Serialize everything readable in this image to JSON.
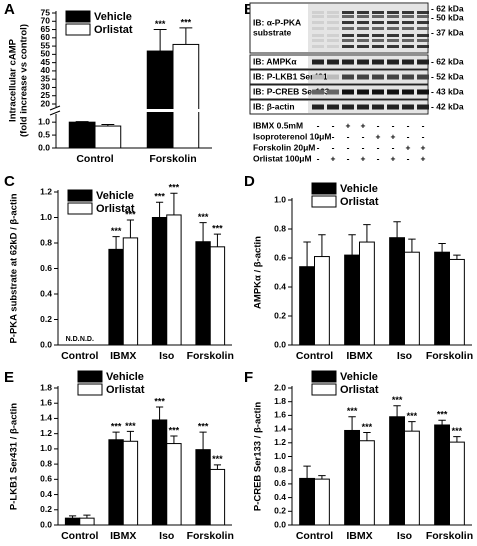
{
  "chart_data": [
    {
      "type": "bar",
      "label": "A",
      "ylabel": [
        "Intracellular cAMP",
        "(fold increase vs control)"
      ],
      "categories": [
        "Control",
        "Forskolin"
      ],
      "series": [
        {
          "name": "Vehicle",
          "color": "#000000",
          "values": [
            1.0,
            52
          ],
          "errors": [
            0.02,
            13
          ],
          "annotations": [
            null,
            "***"
          ]
        },
        {
          "name": "Orlistat",
          "color": "#ffffff",
          "values": [
            0.85,
            56
          ],
          "errors": [
            0.06,
            10
          ],
          "annotations": [
            null,
            "***"
          ]
        }
      ],
      "ylim": [
        0,
        75
      ],
      "ybreak": [
        1.2,
        20
      ],
      "yticks": [
        {
          "value": 0,
          "label": "0.0"
        },
        0.5,
        {
          "value": 1,
          "label": "1.0"
        },
        20,
        25,
        30,
        35,
        40,
        45,
        50,
        55,
        60,
        65,
        70,
        75
      ],
      "legend": "top-left"
    },
    {
      "type": "bar",
      "label": "C",
      "ylabel": [
        "P-PKA substrate at 62kD / β-actin"
      ],
      "categories": [
        "Control",
        "IBMX",
        "Iso",
        "Forskolin"
      ],
      "series": [
        {
          "name": "Vehicle",
          "color": "#000000",
          "values": [
            null,
            0.75,
            1.0,
            0.81
          ],
          "errors": [
            null,
            0.1,
            0.12,
            0.15
          ],
          "annotations": [
            "N.D.",
            "***",
            "***",
            "***"
          ]
        },
        {
          "name": "Orlistat",
          "color": "#ffffff",
          "values": [
            null,
            0.84,
            1.02,
            0.77
          ],
          "errors": [
            null,
            0.14,
            0.17,
            0.1
          ],
          "annotations": [
            "N.D.",
            "***",
            "***",
            "***"
          ]
        }
      ],
      "ylim": [
        0,
        1.2
      ],
      "yticks": [
        {
          "value": 0,
          "label": "0.0"
        },
        0.2,
        0.4,
        0.6,
        0.8,
        {
          "value": 1,
          "label": "1.0"
        },
        1.2
      ],
      "legend": "top-left"
    },
    {
      "type": "bar",
      "label": "D",
      "ylabel": [
        "AMPKα / β-actin"
      ],
      "categories": [
        "Control",
        "IBMX",
        "Iso",
        "Forskolin"
      ],
      "series": [
        {
          "name": "Vehicle",
          "color": "#000000",
          "values": [
            0.54,
            0.62,
            0.74,
            0.64
          ],
          "errors": [
            0.17,
            0.14,
            0.11,
            0.06
          ]
        },
        {
          "name": "Orlistat",
          "color": "#ffffff",
          "values": [
            0.61,
            0.71,
            0.64,
            0.59
          ],
          "errors": [
            0.15,
            0.12,
            0.09,
            0.03
          ]
        }
      ],
      "ylim": [
        0,
        1.0
      ],
      "yticks": [
        {
          "value": 0,
          "label": "0.0"
        },
        0.2,
        0.4,
        0.6,
        0.8,
        {
          "value": 1,
          "label": "1.0"
        }
      ],
      "legend": "top"
    },
    {
      "type": "bar",
      "label": "E",
      "ylabel": [
        "P-LKB1 Ser431 / β-actin"
      ],
      "categories": [
        "Control",
        "IBMX",
        "Iso",
        "Forskolin"
      ],
      "series": [
        {
          "name": "Vehicle",
          "color": "#000000",
          "values": [
            0.09,
            1.12,
            1.38,
            0.99
          ],
          "errors": [
            0.03,
            0.1,
            0.17,
            0.23
          ],
          "annotations": [
            null,
            "***",
            "***",
            "***"
          ]
        },
        {
          "name": "Orlistat",
          "color": "#ffffff",
          "values": [
            0.09,
            1.1,
            1.07,
            0.73
          ],
          "errors": [
            0.04,
            0.13,
            0.1,
            0.06
          ],
          "annotations": [
            null,
            "***",
            "***",
            "***"
          ]
        }
      ],
      "ylim": [
        0,
        1.8
      ],
      "yticks": [
        {
          "value": 0,
          "label": "0.0"
        },
        0.2,
        0.4,
        0.6,
        0.8,
        {
          "value": 1,
          "label": "1.0"
        },
        1.2,
        1.4,
        1.6,
        1.8
      ],
      "legend": "top"
    },
    {
      "type": "bar",
      "label": "F",
      "ylabel": [
        "P-CREB Ser133 / β-actin"
      ],
      "categories": [
        "Control",
        "IBMX",
        "Iso",
        "Forskolin"
      ],
      "series": [
        {
          "name": "Vehicle",
          "color": "#000000",
          "values": [
            0.68,
            1.38,
            1.58,
            1.46
          ],
          "errors": [
            0.18,
            0.2,
            0.16,
            0.07
          ],
          "annotations": [
            null,
            "***",
            "***",
            "***"
          ]
        },
        {
          "name": "Orlistat",
          "color": "#ffffff",
          "values": [
            0.67,
            1.23,
            1.37,
            1.21
          ],
          "errors": [
            0.05,
            0.12,
            0.14,
            0.08
          ],
          "annotations": [
            null,
            "***",
            "***",
            "***"
          ]
        }
      ],
      "ylim": [
        0,
        2.0
      ],
      "yticks": [
        {
          "value": 0,
          "label": "0.0"
        },
        0.2,
        0.4,
        0.6,
        0.8,
        {
          "value": 1,
          "label": "1.0"
        },
        1.2,
        1.4,
        1.6,
        1.8,
        {
          "value": 2,
          "label": "2.0"
        }
      ],
      "legend": "top"
    }
  ],
  "blot": {
    "label": "B",
    "probes": [
      [
        "IB: α-P-PKA",
        "substrate"
      ],
      [
        "IB: AMPKα"
      ],
      [
        "IB: P-LKB1 Ser431"
      ],
      [
        "IB: P-CREB Ser133"
      ],
      [
        "IB: β-actin"
      ]
    ],
    "markers": [
      "- 62 kDa",
      "- 50 kDa",
      "- 37 kDa",
      "- 62 kDa",
      "- 52 kDa",
      "- 43 kDa",
      "- 42 kDa"
    ],
    "treatments": [
      {
        "name": "IBMX 0.5mM",
        "lanes": [
          "-",
          "-",
          "+",
          "+",
          "-",
          "-",
          "-",
          "-"
        ]
      },
      {
        "name": "Isoproterenol 10μM",
        "lanes": [
          "-",
          "-",
          "-",
          "-",
          "+",
          "+",
          "-",
          "-"
        ]
      },
      {
        "name": "Forskolin 20μM",
        "lanes": [
          "-",
          "-",
          "-",
          "-",
          "-",
          "-",
          "+",
          "+"
        ]
      },
      {
        "name": "Orlistat 100μM",
        "lanes": [
          "-",
          "+",
          "-",
          "+",
          "-",
          "+",
          "-",
          "+"
        ]
      }
    ]
  }
}
